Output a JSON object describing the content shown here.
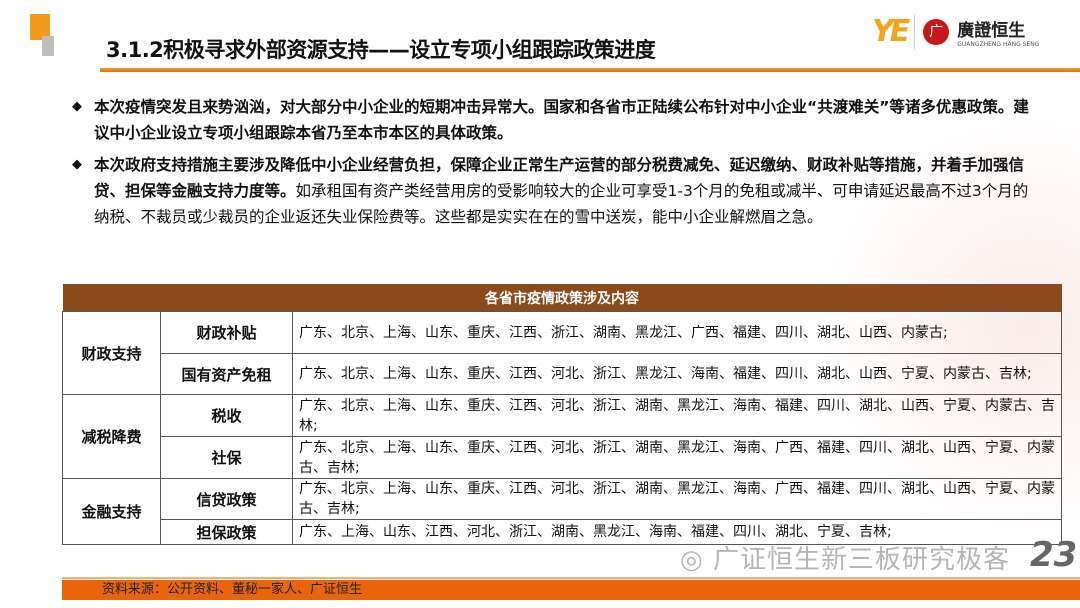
{
  "header": {
    "title": "3.1.2积极寻求外部资源支持——设立专项小组跟踪政策进度",
    "logo": {
      "mark": "YE",
      "seal": "广",
      "name": "廣證恒生",
      "name_en": "GUANGZHENG HANG SENG"
    }
  },
  "bullets": [
    {
      "bold": "本次疫情突发且来势汹汹，对大部分中小企业的短期冲击异常大。国家和各省市正陆续公布针对中小企业“共渡难关”等诸多优惠政策。建议中小企业设立专项小组跟踪本省乃至本市本区的具体政策。",
      "normal": ""
    },
    {
      "bold": "本次政府支持措施主要涉及降低中小企业经营负担，保障企业正常生产运营的部分税费减免、延迟缴纳、财政补贴等措施，并着手加强信贷、担保等金融支持力度等。",
      "normal": "如承租国有资产类经营用房的受影响较大的企业可享受1-3个月的免租或减半、可申请延迟最高不过3个月的纳税、不裁员或少裁员的企业返还失业保险费等。这些都是实实在在的雪中送炭，能中小企业解燃眉之急。"
    }
  ],
  "table": {
    "title": "各省市疫情政策涉及内容",
    "groups": [
      {
        "category": "财政支持",
        "rows": [
          {
            "policy": "财政补贴",
            "regions": "广东、北京、上海、山东、重庆、江西、浙江、湖南、黑龙江、广西、福建、四川、湖北、山西、内蒙古;"
          },
          {
            "policy": "国有资产免租",
            "regions": "广东、北京、上海、山东、重庆、江西、河北、浙江、黑龙江、海南、福建、四川、湖北、山西、宁夏、内蒙古、吉林;"
          }
        ]
      },
      {
        "category": "减税降费",
        "rows": [
          {
            "policy": "税收",
            "regions": "广东、北京、上海、山东、重庆、江西、河北、浙江、湖南、黑龙江、海南、福建、四川、湖北、山西、宁夏、内蒙古、吉林;"
          },
          {
            "policy": "社保",
            "regions": "广东、北京、上海、山东、重庆、江西、河北、浙江、湖南、黑龙江、海南、广西、福建、四川、湖北、山西、宁夏、内蒙古、吉林;"
          }
        ]
      },
      {
        "category": "金融支持",
        "rows": [
          {
            "policy": "信贷政策",
            "regions": "广东、北京、上海、山东、重庆、江西、河北、浙江、湖南、黑龙江、海南、广西、福建、四川、湖北、山西、宁夏、内蒙古、吉林;"
          },
          {
            "policy": "担保政策",
            "regions": "广东、上海、山东、江西、河北、浙江、湖南、黑龙江、海南、福建、四川、湖北、宁夏、吉林;"
          }
        ]
      }
    ]
  },
  "footer": {
    "source": "资料来源：公开资料、董秘一家人、广证恒生"
  },
  "watermark": "广证恒生新三板研究极客",
  "page_number": "23",
  "colors": {
    "accent": "#e9650c",
    "table_header": "#8a4a1c",
    "logo": "#f2a51c"
  }
}
